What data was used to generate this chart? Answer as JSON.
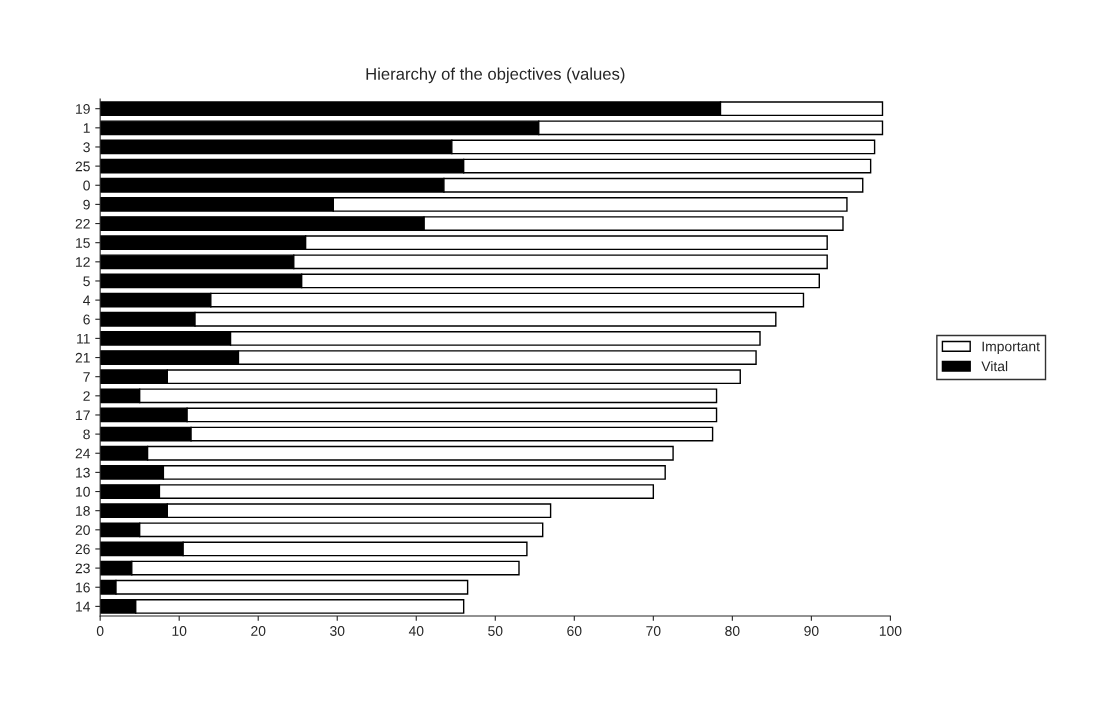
{
  "chart_data": {
    "type": "bar",
    "orientation": "horizontal",
    "stacked": true,
    "title": "Hierarchy of the objectives (values)",
    "categories": [
      "19",
      "1",
      "3",
      "25",
      "0",
      "9",
      "22",
      "15",
      "12",
      "5",
      "4",
      "6",
      "11",
      "21",
      "7",
      "2",
      "17",
      "8",
      "24",
      "13",
      "10",
      "18",
      "20",
      "26",
      "23",
      "16",
      "14"
    ],
    "series": [
      {
        "name": "Vital",
        "color": "#000000",
        "values": [
          78.5,
          55.5,
          44.5,
          46,
          43.5,
          29.5,
          41,
          26,
          24.5,
          25.5,
          14,
          12,
          16.5,
          17.5,
          8.5,
          5,
          11,
          11.5,
          6,
          8,
          7.5,
          8.5,
          5,
          10.5,
          4,
          2,
          4.5
        ]
      },
      {
        "name": "Important",
        "color": "#ffffff",
        "values": [
          20.5,
          43.5,
          53.5,
          51.5,
          53,
          65,
          53,
          66,
          67.5,
          65.5,
          75,
          73.5,
          67,
          65.5,
          72.5,
          73,
          67,
          66,
          66.5,
          63.5,
          62.5,
          48.5,
          51,
          43.5,
          49,
          44.5,
          41.5
        ]
      }
    ],
    "xlim": [
      0,
      100
    ],
    "xticks": [
      0,
      10,
      20,
      30,
      40,
      50,
      60,
      70,
      80,
      90,
      100
    ],
    "grid": false,
    "legend": "right"
  }
}
